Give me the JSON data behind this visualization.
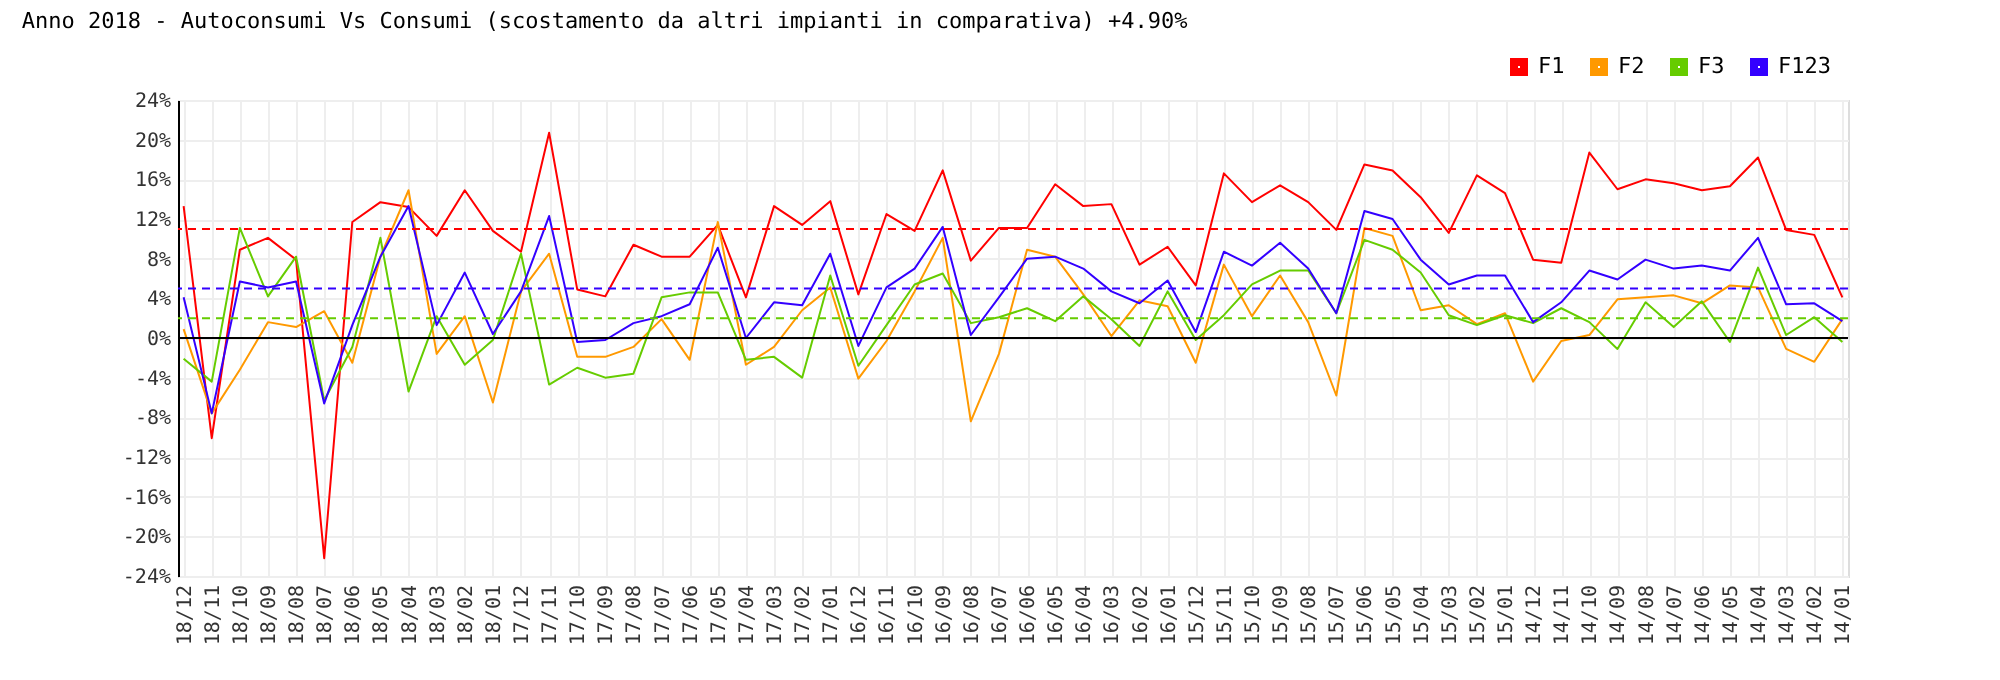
{
  "chart_data": {
    "type": "line",
    "title": "Anno 2018 - Autoconsumi Vs Consumi (scostamento da altri impianti in comparativa) +4.90%",
    "categories": [
      "18/12",
      "18/11",
      "18/10",
      "18/09",
      "18/08",
      "18/07",
      "18/06",
      "18/05",
      "18/04",
      "18/03",
      "18/02",
      "18/01",
      "17/12",
      "17/11",
      "17/10",
      "17/09",
      "17/08",
      "17/07",
      "17/06",
      "17/05",
      "17/04",
      "17/03",
      "17/02",
      "17/01",
      "16/12",
      "16/11",
      "16/10",
      "16/09",
      "16/08",
      "16/07",
      "16/06",
      "16/05",
      "16/04",
      "16/03",
      "16/02",
      "16/01",
      "15/12",
      "15/11",
      "15/10",
      "15/09",
      "15/08",
      "15/07",
      "15/06",
      "15/05",
      "15/04",
      "15/03",
      "15/02",
      "15/01",
      "14/12",
      "14/11",
      "14/10",
      "14/09",
      "14/08",
      "14/07",
      "14/06",
      "14/05",
      "14/04",
      "14/03",
      "14/02",
      "14/01"
    ],
    "series": [
      {
        "name": "F1",
        "color": "#ff0000",
        "values": [
          13.3,
          -10.1,
          8.9,
          10.1,
          7.9,
          -22.2,
          11.7,
          13.7,
          13.2,
          10.3,
          14.9,
          10.8,
          8.7,
          20.7,
          4.9,
          4.2,
          9.4,
          8.2,
          8.2,
          11.4,
          4.1,
          13.3,
          11.4,
          13.8,
          4.4,
          12.5,
          10.8,
          16.9,
          7.8,
          11.1,
          11.1,
          15.5,
          13.3,
          13.5,
          7.4,
          9.2,
          5.3,
          16.6,
          13.7,
          15.4,
          13.7,
          10.9,
          17.5,
          16.9,
          14.2,
          10.6,
          16.4,
          14.6,
          7.9,
          7.6,
          18.7,
          15.0,
          16.0,
          15.6,
          14.9,
          15.3,
          18.2,
          10.9,
          10.4,
          4.1
        ]
      },
      {
        "name": "F2",
        "color": "#ff9900",
        "values": [
          0.9,
          -7.6,
          -3.2,
          1.6,
          1.1,
          2.7,
          -2.5,
          8.2,
          14.9,
          -1.6,
          2.2,
          -6.5,
          4.7,
          8.5,
          -1.9,
          -1.9,
          -0.9,
          1.9,
          -2.2,
          11.7,
          -2.7,
          -0.9,
          2.8,
          5.1,
          -4.1,
          -0.3,
          4.7,
          10.1,
          -8.4,
          -1.6,
          8.9,
          8.2,
          4.4,
          0.2,
          3.8,
          3.2,
          -2.5,
          7.4,
          2.2,
          6.3,
          1.6,
          -5.8,
          11.1,
          10.3,
          2.8,
          3.3,
          1.4,
          2.5,
          -4.4,
          -0.3,
          0.3,
          3.9,
          4.1,
          4.3,
          3.5,
          5.3,
          5.1,
          -1.1,
          -2.4,
          1.9
        ]
      },
      {
        "name": "F3",
        "color": "#66cc00",
        "values": [
          -2.1,
          -4.4,
          11.1,
          4.2,
          8.2,
          -6.3,
          -0.9,
          10.1,
          -5.4,
          2.2,
          -2.7,
          -0.2,
          8.5,
          -4.7,
          -3.0,
          -4.0,
          -3.6,
          4.1,
          4.6,
          4.6,
          -2.2,
          -1.9,
          -4.0,
          6.3,
          -2.8,
          1.3,
          5.4,
          6.5,
          1.5,
          2.1,
          3.0,
          1.7,
          4.2,
          1.9,
          -0.8,
          4.7,
          -0.2,
          2.3,
          5.4,
          6.8,
          6.8,
          2.5,
          9.9,
          8.9,
          6.6,
          2.3,
          1.3,
          2.3,
          1.5,
          3.0,
          1.6,
          -1.1,
          3.6,
          1.1,
          3.7,
          -0.4,
          7.1,
          0.3,
          2.1,
          -0.4
        ]
      },
      {
        "name": "F123",
        "color": "#3300ff",
        "values": [
          4.1,
          -7.6,
          5.7,
          5.1,
          5.7,
          -6.6,
          1.3,
          8.2,
          13.3,
          1.3,
          6.6,
          0.4,
          4.7,
          12.3,
          -0.4,
          -0.2,
          1.5,
          2.2,
          3.4,
          9.1,
          0.0,
          3.6,
          3.3,
          8.5,
          -0.8,
          5.1,
          7.0,
          11.2,
          0.3,
          4.1,
          8.0,
          8.2,
          7.0,
          4.7,
          3.5,
          5.8,
          0.6,
          8.7,
          7.3,
          9.6,
          7.0,
          2.5,
          12.8,
          12.0,
          7.9,
          5.4,
          6.3,
          6.3,
          1.6,
          3.6,
          6.8,
          5.9,
          7.9,
          7.0,
          7.3,
          6.8,
          10.1,
          3.4,
          3.5,
          1.7
        ]
      }
    ],
    "ylim": [
      -24,
      24
    ],
    "yticks": [
      {
        "value": -24,
        "label": "-24%"
      },
      {
        "value": -20,
        "label": "-20%"
      },
      {
        "value": -16,
        "label": "-16%"
      },
      {
        "value": -12,
        "label": "-12%"
      },
      {
        "value": -8,
        "label": "-8%"
      },
      {
        "value": -4,
        "label": "-4%"
      },
      {
        "value": 0,
        "label": "0%"
      },
      {
        "value": 4,
        "label": "4%"
      },
      {
        "value": 8,
        "label": "8%"
      },
      {
        "value": 12,
        "label": "12%"
      },
      {
        "value": 16,
        "label": "16%"
      },
      {
        "value": 20,
        "label": "20%"
      },
      {
        "value": 24,
        "label": "24%"
      }
    ],
    "ref_lines": [
      {
        "axis": "y",
        "value": 0,
        "color": "#000000",
        "line_style": "solid"
      },
      {
        "axis": "y",
        "value": 11,
        "color": "#ff0000",
        "line_style": "dashed"
      },
      {
        "axis": "y",
        "value": 5,
        "color": "#3300ff",
        "line_style": "dashed"
      },
      {
        "axis": "y",
        "value": 2,
        "color": "#66cc00",
        "line_style": "dashed"
      }
    ],
    "grid": true,
    "legend": "top right",
    "marker": "none",
    "line_style": "solid"
  }
}
